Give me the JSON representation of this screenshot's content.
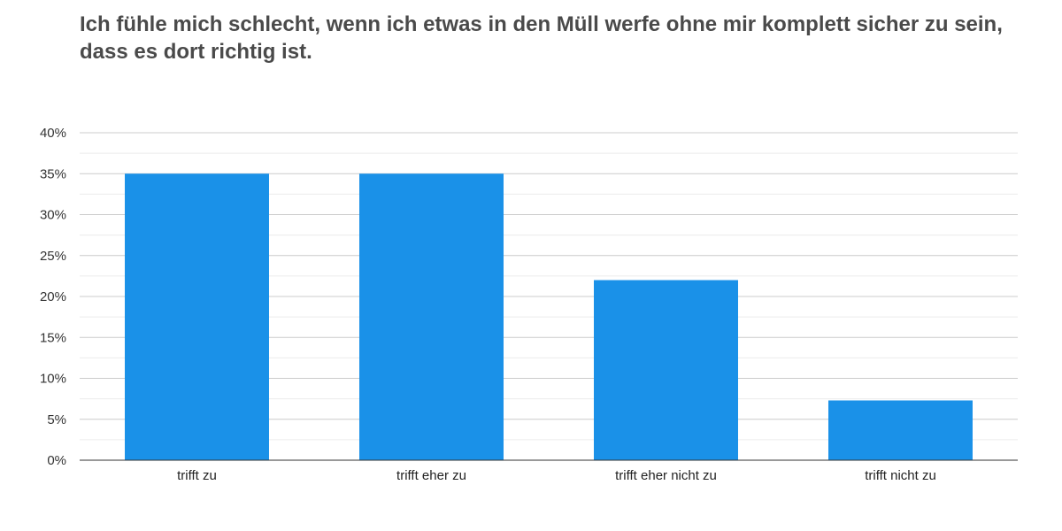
{
  "chart_data": {
    "type": "bar",
    "title": "Ich fühle mich schlecht, wenn ich etwas in den Müll werfe ohne mir komplett sicher zu sein, dass es dort richtig ist.",
    "xlabel": "",
    "ylabel": "",
    "categories": [
      "trifft zu",
      "trifft eher zu",
      "trifft eher nicht zu",
      "trifft nicht zu"
    ],
    "values": [
      35,
      35,
      22,
      7.3
    ],
    "ylim": [
      0,
      40
    ],
    "yticks": [
      0,
      5,
      10,
      15,
      20,
      25,
      30,
      35,
      40
    ],
    "ytick_labels": [
      "0%",
      "5%",
      "10%",
      "15%",
      "20%",
      "25%",
      "30%",
      "35%",
      "40%"
    ],
    "grid": true,
    "legend": "none",
    "bar_color": "#1a91e8"
  }
}
